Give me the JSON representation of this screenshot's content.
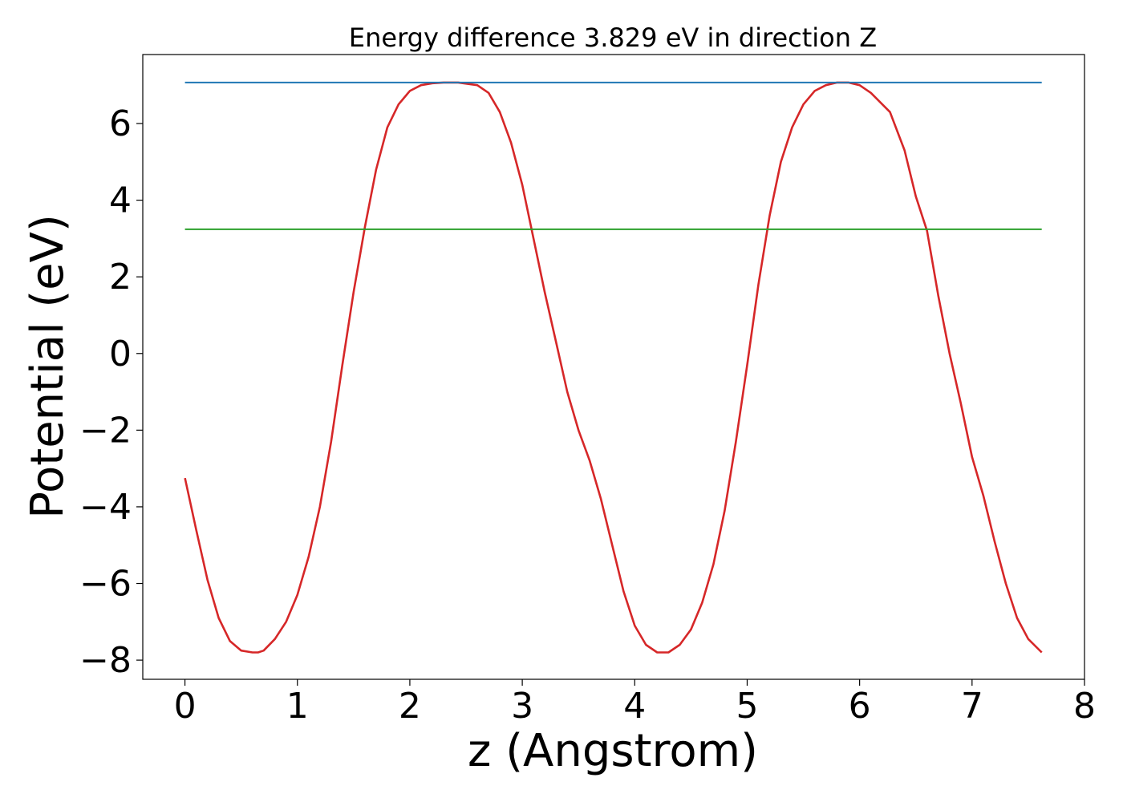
{
  "chart_data": {
    "type": "line",
    "title": "Energy difference 3.829 eV in direction Z",
    "xlabel": "z (Angstrom)",
    "ylabel": "Potential (eV)",
    "xlim": [
      -0.375,
      8.0
    ],
    "ylim": [
      -8.5,
      7.8
    ],
    "xticks": [
      0,
      1,
      2,
      3,
      4,
      5,
      6,
      7,
      8
    ],
    "xtick_labels": [
      "0",
      "1",
      "2",
      "3",
      "4",
      "5",
      "6",
      "7",
      "8"
    ],
    "yticks": [
      -8,
      -6,
      -4,
      -2,
      0,
      2,
      4,
      6
    ],
    "ytick_labels": [
      "−8",
      "−6",
      "−4",
      "−2",
      "0",
      "2",
      "4",
      "6"
    ],
    "grid": false,
    "series": [
      {
        "color": "#d62728",
        "x": [
          0.0,
          0.1,
          0.2,
          0.3,
          0.4,
          0.5,
          0.6,
          0.65,
          0.7,
          0.8,
          0.9,
          1.0,
          1.1,
          1.2,
          1.3,
          1.4,
          1.5,
          1.6,
          1.7,
          1.8,
          1.9,
          2.0,
          2.1,
          2.2,
          2.3,
          2.43,
          2.6,
          2.7,
          2.8,
          2.9,
          3.0,
          3.1,
          3.2,
          3.3,
          3.4,
          3.5,
          3.6,
          3.7,
          3.8,
          3.9,
          4.0,
          4.1,
          4.2,
          4.3,
          4.4,
          4.5,
          4.6,
          4.7,
          4.8,
          4.9,
          5.0,
          5.1,
          5.2,
          5.3,
          5.4,
          5.5,
          5.6,
          5.7,
          5.8,
          5.9,
          6.0,
          6.1,
          6.27,
          6.4,
          6.5,
          6.6,
          6.7,
          6.8,
          6.9,
          7.0,
          7.1,
          7.2,
          7.3,
          7.4,
          7.5,
          7.62
        ],
        "y": [
          -3.25,
          -4.6,
          -5.9,
          -6.9,
          -7.5,
          -7.75,
          -7.8,
          -7.8,
          -7.75,
          -7.45,
          -7.0,
          -6.3,
          -5.3,
          -4.0,
          -2.3,
          -0.3,
          1.6,
          3.3,
          4.8,
          5.9,
          6.5,
          6.85,
          7.0,
          7.05,
          7.07,
          7.07,
          7.0,
          6.8,
          6.3,
          5.5,
          4.4,
          3.0,
          1.6,
          0.3,
          -1.0,
          -2.0,
          -2.8,
          -3.8,
          -5.0,
          -6.2,
          -7.1,
          -7.6,
          -7.8,
          -7.8,
          -7.6,
          -7.2,
          -6.5,
          -5.5,
          -4.1,
          -2.3,
          -0.3,
          1.8,
          3.6,
          5.0,
          5.9,
          6.5,
          6.85,
          7.0,
          7.07,
          7.07,
          7.0,
          6.8,
          6.3,
          5.3,
          4.1,
          3.2,
          1.5,
          0.0,
          -1.3,
          -2.7,
          -3.7,
          -4.9,
          -6.0,
          -6.9,
          -7.45,
          -7.8
        ]
      },
      {
        "color": "#1f77b4",
        "x": [
          0.0,
          7.62
        ],
        "y": [
          7.07,
          7.07
        ]
      },
      {
        "color": "#2ca02c",
        "x": [
          0.0,
          7.62
        ],
        "y": [
          3.24,
          3.24
        ]
      }
    ]
  }
}
